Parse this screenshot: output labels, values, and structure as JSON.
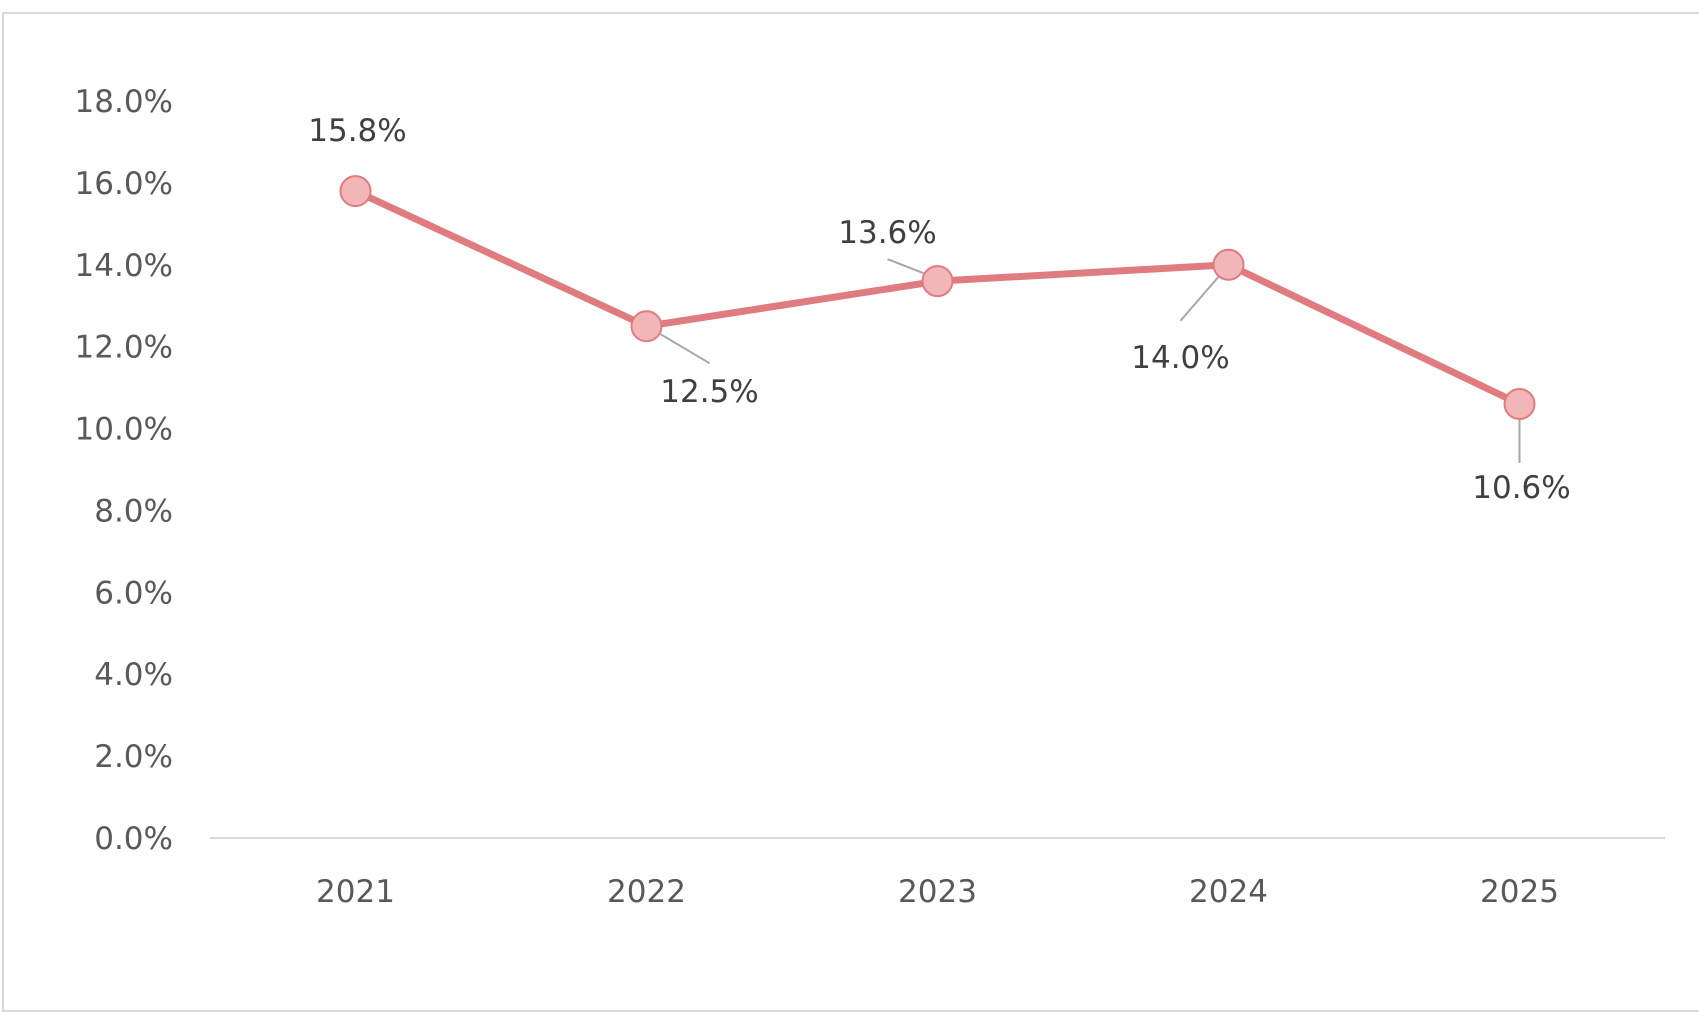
{
  "chart_data": {
    "type": "line",
    "title": "",
    "xlabel": "",
    "ylabel": "",
    "categories": [
      "2021",
      "2022",
      "2023",
      "2024",
      "2025"
    ],
    "series": [
      {
        "values": [
          15.8,
          12.5,
          13.6,
          14.0,
          10.6
        ],
        "data_labels": [
          "15.8%",
          "12.5%",
          "13.6%",
          "14.0%",
          "10.6%"
        ],
        "color": "#e07b80",
        "marker_color": "#f2b6b9"
      }
    ],
    "ylim": [
      0,
      18
    ],
    "yticks": [
      0,
      2,
      4,
      6,
      8,
      10,
      12,
      14,
      16,
      18
    ],
    "ytick_labels": [
      "0.0%",
      "2.0%",
      "4.0%",
      "6.0%",
      "8.0%",
      "10.0%",
      "12.0%",
      "14.0%",
      "16.0%",
      "18.0%"
    ],
    "grid": false,
    "legend": "none",
    "axis_color": "#d9d9d9",
    "leader_line_color": "#a6a6a6"
  }
}
